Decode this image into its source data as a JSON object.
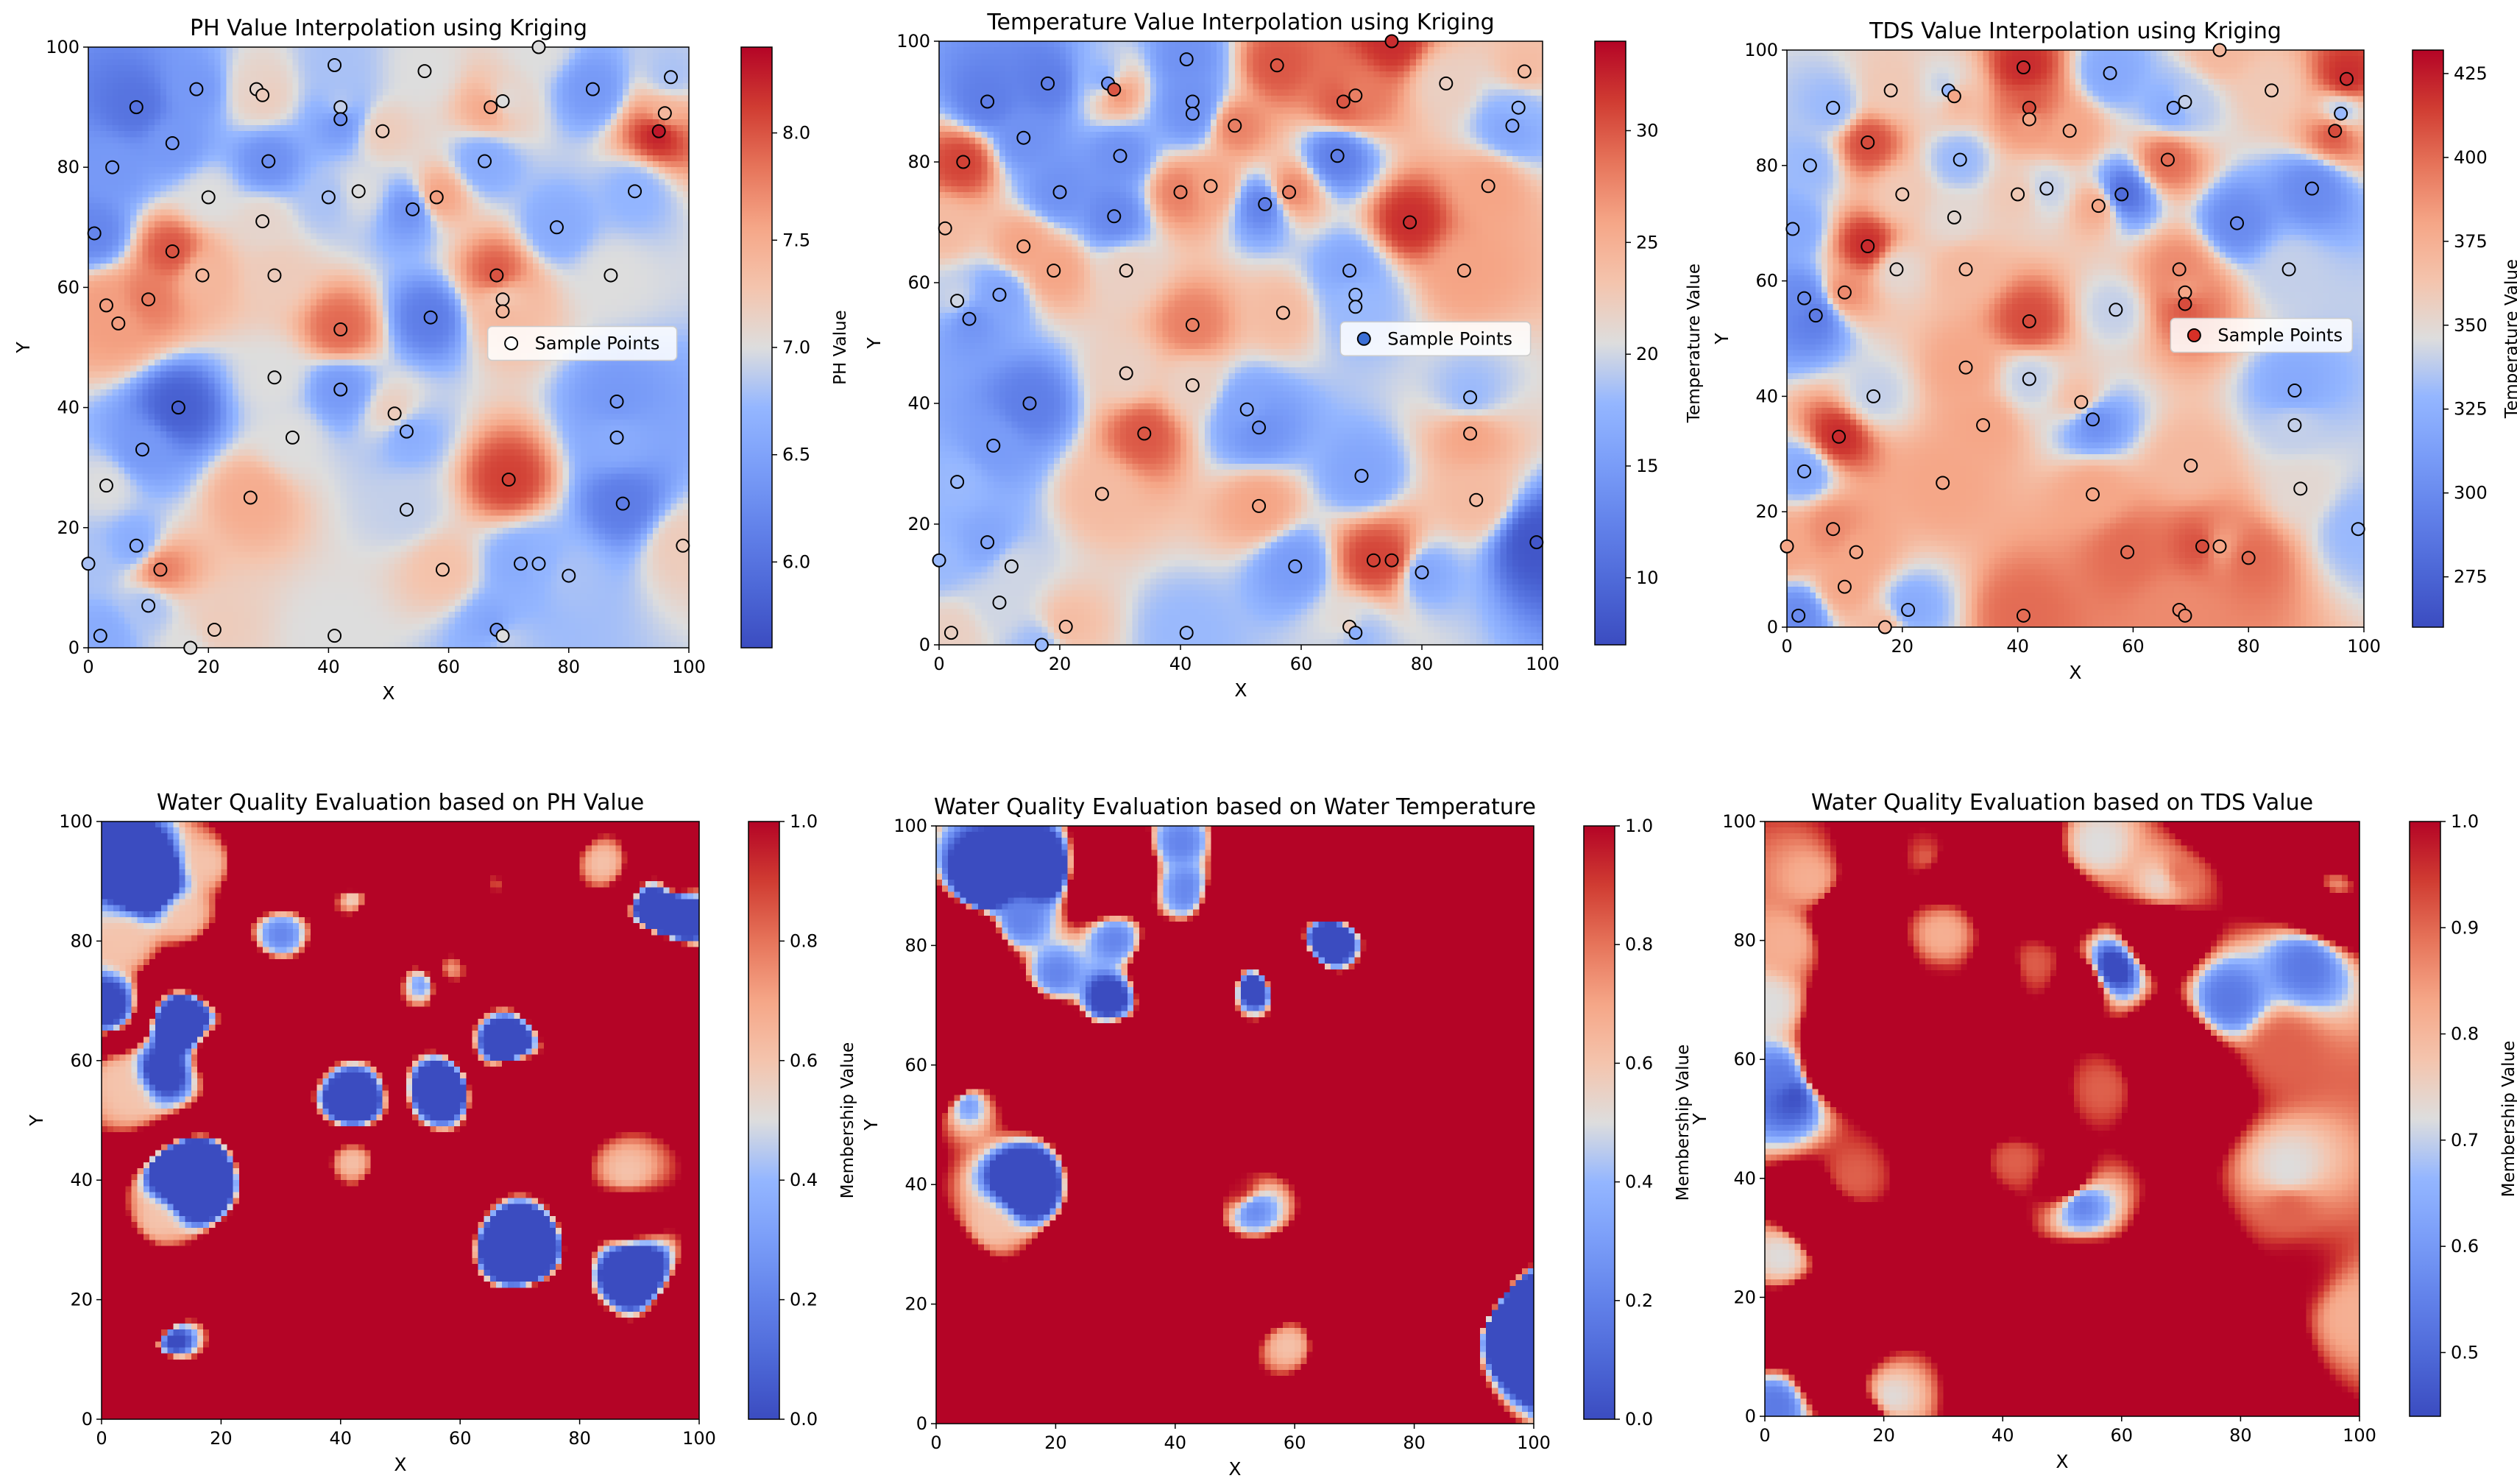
{
  "colors": {
    "cool_low": "#3b4cc0",
    "neutral_mid": "#dddddd",
    "warm_high": "#b40426",
    "sample_blue": "#3b6fd6",
    "sample_red": "#d73027"
  },
  "chart_data": [
    {
      "type": "heatmap",
      "title": "PH Value Interpolation using Kriging",
      "xlabel": "X",
      "ylabel": "Y",
      "xlim": [
        0,
        100
      ],
      "ylim": [
        0,
        100
      ],
      "xticks": [
        0,
        20,
        40,
        60,
        80,
        100
      ],
      "yticks": [
        0,
        20,
        40,
        60,
        80,
        100
      ],
      "colorbar": {
        "label": "PH Value",
        "range": [
          5.6,
          8.4
        ],
        "ticks": [
          6.0,
          6.5,
          7.0,
          7.5,
          8.0
        ],
        "tick_labels": [
          "6.0",
          "6.5",
          "7.0",
          "7.5",
          "8.0"
        ]
      },
      "legend": {
        "label": "Sample Points",
        "placement": "center-right",
        "marker_color": "#ffffff"
      },
      "samples": [
        [
          0,
          14,
          6.8
        ],
        [
          1,
          69,
          6.2
        ],
        [
          2,
          2,
          6.6
        ],
        [
          3,
          27,
          7.0
        ],
        [
          3,
          57,
          7.6
        ],
        [
          4,
          80,
          6.4
        ],
        [
          5,
          54,
          7.6
        ],
        [
          8,
          90,
          6.0
        ],
        [
          8,
          17,
          6.6
        ],
        [
          9,
          33,
          6.4
        ],
        [
          10,
          58,
          7.8
        ],
        [
          10,
          7,
          6.8
        ],
        [
          12,
          13,
          7.8
        ],
        [
          14,
          66,
          8.0
        ],
        [
          14,
          84,
          6.4
        ],
        [
          15,
          40,
          5.8
        ],
        [
          17,
          0,
          7.0
        ],
        [
          18,
          93,
          6.4
        ],
        [
          19,
          62,
          7.4
        ],
        [
          20,
          75,
          7.0
        ],
        [
          21,
          3,
          7.2
        ],
        [
          27,
          25,
          7.5
        ],
        [
          28,
          93,
          7.1
        ],
        [
          29,
          71,
          7.1
        ],
        [
          29,
          92,
          7.2
        ],
        [
          30,
          81,
          6.3
        ],
        [
          31,
          45,
          7.0
        ],
        [
          31,
          62,
          7.2
        ],
        [
          34,
          35,
          7.0
        ],
        [
          40,
          75,
          6.8
        ],
        [
          41,
          2,
          7.0
        ],
        [
          41,
          97,
          6.8
        ],
        [
          42,
          90,
          6.9
        ],
        [
          42,
          88,
          6.3
        ],
        [
          42,
          43,
          6.4
        ],
        [
          42,
          53,
          7.9
        ],
        [
          45,
          76,
          7.0
        ],
        [
          49,
          86,
          7.2
        ],
        [
          51,
          39,
          7.2
        ],
        [
          53,
          36,
          6.6
        ],
        [
          53,
          23,
          6.9
        ],
        [
          54,
          73,
          6.3
        ],
        [
          56,
          96,
          7.0
        ],
        [
          57,
          55,
          6.1
        ],
        [
          58,
          75,
          7.6
        ],
        [
          59,
          13,
          7.3
        ],
        [
          66,
          81,
          6.6
        ],
        [
          67,
          90,
          7.6
        ],
        [
          68,
          3,
          6.4
        ],
        [
          68,
          62,
          8.0
        ],
        [
          69,
          91,
          7.0
        ],
        [
          69,
          58,
          7.2
        ],
        [
          69,
          56,
          7.4
        ],
        [
          69,
          2,
          7.0
        ],
        [
          70,
          28,
          8.1
        ],
        [
          72,
          14,
          6.6
        ],
        [
          75,
          14,
          6.7
        ],
        [
          75,
          100,
          7.0
        ],
        [
          78,
          70,
          6.6
        ],
        [
          80,
          12,
          6.8
        ],
        [
          84,
          93,
          6.4
        ],
        [
          87,
          62,
          7.0
        ],
        [
          88,
          41,
          6.4
        ],
        [
          88,
          35,
          6.6
        ],
        [
          89,
          24,
          6.1
        ],
        [
          91,
          76,
          6.7
        ],
        [
          95,
          86,
          8.3
        ],
        [
          96,
          89,
          7.4
        ],
        [
          97,
          95,
          6.8
        ],
        [
          99,
          17,
          7.2
        ]
      ]
    },
    {
      "type": "heatmap",
      "title": "Temperature Value Interpolation using Kriging",
      "xlabel": "X",
      "ylabel": "Y",
      "xlim": [
        0,
        100
      ],
      "ylim": [
        0,
        100
      ],
      "xticks": [
        0,
        20,
        40,
        60,
        80,
        100
      ],
      "yticks": [
        0,
        20,
        40,
        60,
        80,
        100
      ],
      "colorbar": {
        "label": "Temperature Value",
        "range": [
          7,
          34
        ],
        "ticks": [
          10,
          15,
          20,
          25,
          30
        ],
        "tick_labels": [
          "10",
          "15",
          "20",
          "25",
          "30"
        ]
      },
      "legend": {
        "label": "Sample Points",
        "placement": "center-right",
        "marker_color": "#3b6fd6"
      },
      "samples": [
        [
          0,
          14,
          18
        ],
        [
          1,
          69,
          24
        ],
        [
          2,
          2,
          22
        ],
        [
          3,
          27,
          18
        ],
        [
          3,
          57,
          20
        ],
        [
          4,
          80,
          31
        ],
        [
          5,
          54,
          14
        ],
        [
          8,
          90,
          12
        ],
        [
          8,
          17,
          16
        ],
        [
          9,
          33,
          15
        ],
        [
          10,
          58,
          16
        ],
        [
          10,
          7,
          20
        ],
        [
          12,
          13,
          20
        ],
        [
          14,
          66,
          26
        ],
        [
          14,
          84,
          14
        ],
        [
          15,
          40,
          12
        ],
        [
          17,
          0,
          18
        ],
        [
          18,
          93,
          12
        ],
        [
          19,
          62,
          26
        ],
        [
          20,
          75,
          14
        ],
        [
          21,
          3,
          24
        ],
        [
          27,
          25,
          24
        ],
        [
          28,
          93,
          14
        ],
        [
          29,
          71,
          13
        ],
        [
          29,
          92,
          30
        ],
        [
          30,
          81,
          14
        ],
        [
          31,
          45,
          22
        ],
        [
          31,
          62,
          22
        ],
        [
          34,
          35,
          30
        ],
        [
          40,
          75,
          28
        ],
        [
          41,
          2,
          18
        ],
        [
          41,
          97,
          14
        ],
        [
          42,
          90,
          14
        ],
        [
          42,
          88,
          14
        ],
        [
          42,
          43,
          22
        ],
        [
          42,
          53,
          28
        ],
        [
          45,
          76,
          26
        ],
        [
          49,
          86,
          28
        ],
        [
          51,
          39,
          16
        ],
        [
          53,
          36,
          14
        ],
        [
          53,
          23,
          26
        ],
        [
          54,
          73,
          12
        ],
        [
          56,
          96,
          30
        ],
        [
          57,
          55,
          24
        ],
        [
          58,
          75,
          28
        ],
        [
          59,
          13,
          15
        ],
        [
          66,
          81,
          12
        ],
        [
          67,
          90,
          30
        ],
        [
          68,
          3,
          22
        ],
        [
          68,
          62,
          16
        ],
        [
          69,
          91,
          28
        ],
        [
          69,
          58,
          18
        ],
        [
          69,
          56,
          18
        ],
        [
          69,
          2,
          17
        ],
        [
          70,
          28,
          16
        ],
        [
          72,
          14,
          31
        ],
        [
          75,
          14,
          31
        ],
        [
          75,
          100,
          32
        ],
        [
          78,
          70,
          32
        ],
        [
          80,
          12,
          16
        ],
        [
          84,
          93,
          22
        ],
        [
          87,
          62,
          26
        ],
        [
          88,
          41,
          18
        ],
        [
          88,
          35,
          26
        ],
        [
          89,
          24,
          24
        ],
        [
          91,
          76,
          26
        ],
        [
          95,
          86,
          16
        ],
        [
          96,
          89,
          18
        ],
        [
          97,
          95,
          24
        ],
        [
          99,
          17,
          8
        ]
      ]
    },
    {
      "type": "heatmap",
      "title": "TDS Value Interpolation using Kriging",
      "xlabel": "X",
      "ylabel": "Y",
      "xlim": [
        0,
        100
      ],
      "ylim": [
        0,
        100
      ],
      "xticks": [
        0,
        20,
        40,
        60,
        80,
        100
      ],
      "yticks": [
        0,
        20,
        40,
        60,
        80,
        100
      ],
      "colorbar": {
        "label": "Temperature Value",
        "range": [
          260,
          432
        ],
        "ticks": [
          275,
          300,
          325,
          350,
          375,
          400,
          425
        ],
        "tick_labels": [
          "275",
          "300",
          "325",
          "350",
          "375",
          "400",
          "425"
        ]
      },
      "legend": {
        "label": "Sample Points",
        "placement": "center-right",
        "marker_color": "#d73027"
      },
      "samples": [
        [
          0,
          14,
          380
        ],
        [
          1,
          69,
          320
        ],
        [
          2,
          2,
          300
        ],
        [
          3,
          27,
          320
        ],
        [
          3,
          57,
          300
        ],
        [
          4,
          80,
          330
        ],
        [
          5,
          54,
          290
        ],
        [
          8,
          90,
          330
        ],
        [
          8,
          17,
          390
        ],
        [
          9,
          33,
          420
        ],
        [
          10,
          58,
          390
        ],
        [
          10,
          7,
          380
        ],
        [
          12,
          13,
          380
        ],
        [
          14,
          66,
          420
        ],
        [
          14,
          84,
          410
        ],
        [
          15,
          40,
          340
        ],
        [
          17,
          0,
          370
        ],
        [
          18,
          93,
          360
        ],
        [
          19,
          62,
          350
        ],
        [
          20,
          75,
          360
        ],
        [
          21,
          3,
          320
        ],
        [
          27,
          25,
          380
        ],
        [
          28,
          93,
          330
        ],
        [
          29,
          71,
          350
        ],
        [
          29,
          92,
          380
        ],
        [
          30,
          81,
          330
        ],
        [
          31,
          45,
          380
        ],
        [
          31,
          62,
          370
        ],
        [
          34,
          35,
          380
        ],
        [
          40,
          75,
          360
        ],
        [
          41,
          2,
          400
        ],
        [
          41,
          97,
          420
        ],
        [
          42,
          90,
          410
        ],
        [
          42,
          88,
          380
        ],
        [
          42,
          43,
          340
        ],
        [
          42,
          53,
          410
        ],
        [
          45,
          76,
          340
        ],
        [
          49,
          86,
          380
        ],
        [
          51,
          39,
          370
        ],
        [
          53,
          36,
          300
        ],
        [
          53,
          23,
          380
        ],
        [
          54,
          73,
          380
        ],
        [
          56,
          96,
          320
        ],
        [
          57,
          55,
          340
        ],
        [
          58,
          75,
          280
        ],
        [
          59,
          13,
          400
        ],
        [
          66,
          81,
          400
        ],
        [
          67,
          90,
          320
        ],
        [
          68,
          3,
          390
        ],
        [
          68,
          62,
          390
        ],
        [
          69,
          91,
          340
        ],
        [
          69,
          58,
          380
        ],
        [
          69,
          56,
          410
        ],
        [
          69,
          2,
          390
        ],
        [
          70,
          28,
          370
        ],
        [
          72,
          14,
          410
        ],
        [
          75,
          14,
          380
        ],
        [
          75,
          100,
          370
        ],
        [
          78,
          70,
          300
        ],
        [
          80,
          12,
          400
        ],
        [
          84,
          93,
          360
        ],
        [
          87,
          62,
          340
        ],
        [
          88,
          41,
          320
        ],
        [
          88,
          35,
          340
        ],
        [
          89,
          24,
          350
        ],
        [
          91,
          76,
          300
        ],
        [
          95,
          86,
          410
        ],
        [
          96,
          89,
          330
        ],
        [
          97,
          95,
          420
        ],
        [
          99,
          17,
          330
        ]
      ]
    },
    {
      "type": "heatmap",
      "title": "Water Quality Evaluation based on PH Value",
      "xlabel": "X",
      "ylabel": "Y",
      "xlim": [
        0,
        100
      ],
      "ylim": [
        0,
        100
      ],
      "xticks": [
        0,
        20,
        40,
        60,
        80,
        100
      ],
      "yticks": [
        0,
        20,
        40,
        60,
        80,
        100
      ],
      "colorbar": {
        "label": "Membership Value",
        "range": [
          0,
          1
        ],
        "ticks": [
          0.0,
          0.2,
          0.4,
          0.6,
          0.8,
          1.0
        ],
        "tick_labels": [
          "0.0",
          "0.2",
          "0.4",
          "0.6",
          "0.8",
          "1.0"
        ]
      },
      "membership": {
        "source": 0,
        "lo": 6.5,
        "hi": 7.5,
        "width": 0.25
      }
    },
    {
      "type": "heatmap",
      "title": "Water Quality Evaluation based on Water Temperature",
      "xlabel": "X",
      "ylabel": "Y",
      "xlim": [
        0,
        100
      ],
      "ylim": [
        0,
        100
      ],
      "xticks": [
        0,
        20,
        40,
        60,
        80,
        100
      ],
      "yticks": [
        0,
        20,
        40,
        60,
        80,
        100
      ],
      "colorbar": {
        "label": "Membership Value",
        "range": [
          0,
          1
        ],
        "ticks": [
          0.0,
          0.2,
          0.4,
          0.6,
          0.8,
          1.0
        ],
        "tick_labels": [
          "0.0",
          "0.2",
          "0.4",
          "0.6",
          "0.8",
          "1.0"
        ]
      },
      "membership": {
        "source": 1,
        "lo": 16,
        "hi": 33,
        "width": 2.5
      }
    },
    {
      "type": "heatmap",
      "title": "Water Quality Evaluation based on TDS Value",
      "xlabel": "X",
      "ylabel": "Y",
      "xlim": [
        0,
        100
      ],
      "ylim": [
        0,
        100
      ],
      "xticks": [
        0,
        20,
        40,
        60,
        80,
        100
      ],
      "yticks": [
        0,
        20,
        40,
        60,
        80,
        100
      ],
      "colorbar": {
        "label": "Membership Value",
        "range": [
          0.44,
          1.0
        ],
        "ticks": [
          0.5,
          0.6,
          0.7,
          0.8,
          0.9,
          1.0
        ],
        "tick_labels": [
          "0.5",
          "0.6",
          "0.7",
          "0.8",
          "0.9",
          "1.0"
        ]
      },
      "membership": {
        "source": 2,
        "lo": 350,
        "hi": 500,
        "width": 60,
        "floor": 0.44
      }
    }
  ]
}
